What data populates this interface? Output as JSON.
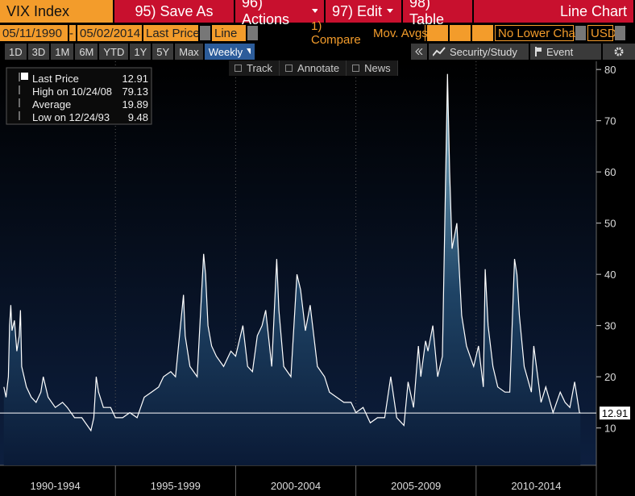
{
  "ui": {
    "security": "VIX Index",
    "buttons": [
      "95) Save As",
      "96) Actions",
      "97) Edit",
      "98) Table"
    ],
    "chart_kind": "Line Chart",
    "start_date": "05/11/1990",
    "date_separator": "-",
    "end_date": "05/02/2014",
    "field": "Last Price",
    "style": "Line",
    "compare": "1) Compare",
    "mov_avgs": "Mov. Avgs",
    "lower_chart": "No Lower Char",
    "currency": "USD",
    "periods": [
      "1D",
      "3D",
      "1M",
      "6M",
      "YTD",
      "1Y",
      "5Y",
      "Max"
    ],
    "frequency": "Weekly",
    "security_study": "Security/Study",
    "event": "Event",
    "tools": [
      "Track",
      "Annotate",
      "News"
    ]
  },
  "chart_data": {
    "type": "line",
    "series": [
      {
        "name": "Last Price",
        "color": "#ffffff",
        "x": [
          1990.36,
          1990.45,
          1990.55,
          1990.6,
          1990.65,
          1990.7,
          1990.8,
          1990.9,
          1991.0,
          1991.05,
          1991.1,
          1991.3,
          1991.5,
          1991.7,
          1991.9,
          1992.0,
          1992.2,
          1992.5,
          1992.8,
          1993.0,
          1993.3,
          1993.6,
          1993.98,
          1994.1,
          1994.2,
          1994.3,
          1994.5,
          1994.8,
          1995.0,
          1995.3,
          1995.6,
          1995.9,
          1996.2,
          1996.5,
          1996.8,
          1997.0,
          1997.3,
          1997.5,
          1997.83,
          1997.9,
          1998.1,
          1998.4,
          1998.67,
          1998.75,
          1998.85,
          1999.0,
          1999.2,
          1999.5,
          1999.8,
          2000.0,
          2000.3,
          2000.5,
          2000.7,
          2000.9,
          2001.1,
          2001.25,
          2001.5,
          2001.71,
          2001.8,
          2002.0,
          2002.3,
          2002.55,
          2002.7,
          2002.8,
          2002.9,
          2003.1,
          2003.2,
          2003.4,
          2003.7,
          2003.9,
          2004.2,
          2004.5,
          2004.8,
          2005.0,
          2005.3,
          2005.6,
          2005.9,
          2006.2,
          2006.45,
          2006.7,
          2006.9,
          2007.0,
          2007.17,
          2007.4,
          2007.6,
          2007.7,
          2007.9,
          2008.0,
          2008.2,
          2008.4,
          2008.6,
          2008.81,
          2008.9,
          2009.0,
          2009.2,
          2009.4,
          2009.6,
          2009.9,
          2010.1,
          2010.3,
          2010.38,
          2010.5,
          2010.7,
          2010.9,
          2011.2,
          2011.4,
          2011.6,
          2011.7,
          2011.8,
          2012.0,
          2012.3,
          2012.4,
          2012.7,
          2012.9,
          2013.2,
          2013.5,
          2013.7,
          2013.9,
          2014.1,
          2014.3,
          2014.34
        ],
        "values": [
          18,
          16,
          20,
          30,
          34,
          29,
          31,
          25,
          28,
          33,
          22,
          18,
          16,
          15,
          17,
          20,
          16,
          14,
          15,
          14,
          12,
          12,
          9.48,
          12,
          20,
          17,
          14,
          14,
          12,
          12,
          13,
          12,
          16,
          17,
          18,
          20,
          21,
          20,
          36,
          28,
          22,
          20,
          44,
          40,
          30,
          26,
          24,
          22,
          25,
          24,
          30,
          22,
          21,
          28,
          30,
          33,
          22,
          43,
          33,
          22,
          20,
          40,
          37,
          33,
          29,
          34,
          30,
          22,
          20,
          17,
          16,
          15,
          15,
          13,
          14,
          11,
          12,
          12,
          20,
          12,
          11,
          10.5,
          19,
          14,
          26,
          20,
          27,
          25,
          30,
          20,
          24,
          79.13,
          60,
          45,
          50,
          32,
          26,
          22,
          26,
          18,
          41,
          30,
          22,
          18,
          17,
          17,
          43,
          40,
          32,
          22,
          17,
          26,
          15,
          18,
          13,
          17,
          15,
          14,
          19,
          13,
          12.91
        ]
      }
    ],
    "xlim": [
      1990.2,
      2015.0
    ],
    "xticks": [
      {
        "value": 1992.5,
        "label": "1990-1994"
      },
      {
        "value": 1997.5,
        "label": "1995-1999"
      },
      {
        "value": 2002.5,
        "label": "2000-2004"
      },
      {
        "value": 2007.5,
        "label": "2005-2009"
      },
      {
        "value": 2012.5,
        "label": "2010-2014"
      }
    ],
    "period_bounds": [
      1995,
      2000,
      2005,
      2010
    ],
    "ylim": [
      2.7,
      81.6
    ],
    "yticks": [
      10,
      20,
      30,
      40,
      50,
      60,
      70,
      80
    ],
    "stats": [
      {
        "label": "Last Price",
        "value": 12.91
      },
      {
        "label": "High on 10/24/08",
        "value": 79.13
      },
      {
        "label": "Average",
        "value": 19.89
      },
      {
        "label": "Low on 12/24/93",
        "value": 9.48
      }
    ]
  }
}
